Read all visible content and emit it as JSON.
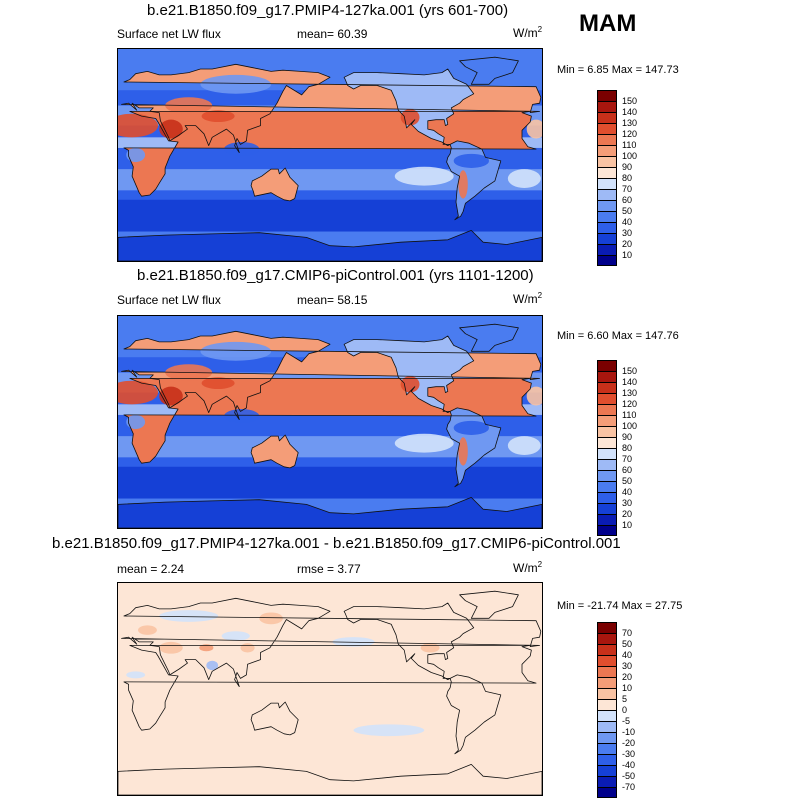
{
  "season": "MAM",
  "panels": [
    {
      "title": "b.e21.B1850.f09_g17.PMIP4-127ka.001 (yrs 601-700)",
      "left_label": "Surface net LW flux",
      "center_label": "mean=  60.39",
      "units": "W/m",
      "units_sup": "2",
      "minmax": "Min =   6.85 Max = 147.73",
      "colorbar_ticks": [
        "150",
        "140",
        "130",
        "120",
        "110",
        "100",
        "90",
        "80",
        "70",
        "60",
        "50",
        "40",
        "30",
        "20",
        "10"
      ]
    },
    {
      "title": "b.e21.B1850.f09_g17.CMIP6-piControl.001 (yrs 1101-1200)",
      "left_label": "Surface net LW flux",
      "center_label": "mean=  58.15",
      "units": "W/m",
      "units_sup": "2",
      "minmax": "Min =   6.60 Max = 147.76",
      "colorbar_ticks": [
        "150",
        "140",
        "130",
        "120",
        "110",
        "100",
        "90",
        "80",
        "70",
        "60",
        "50",
        "40",
        "30",
        "20",
        "10"
      ]
    },
    {
      "title": "b.e21.B1850.f09_g17.PMIP4-127ka.001 - b.e21.B1850.f09_g17.CMIP6-piControl.001",
      "left_label": "mean =   2.24",
      "center_label": "rmse =   3.77",
      "units": "W/m",
      "units_sup": "2",
      "minmax": "Min = -21.74 Max =  27.75",
      "colorbar_ticks": [
        "70",
        "50",
        "40",
        "30",
        "20",
        "10",
        "5",
        "0",
        "-5",
        "-10",
        "-20",
        "-30",
        "-40",
        "-50",
        "-70"
      ]
    }
  ],
  "chart_data": [
    {
      "type": "heatmap",
      "title": "b.e21.B1850.f09_g17.PMIP4-127ka.001 (yrs 601-700)",
      "variable": "Surface net LW flux",
      "units": "W/m2",
      "mean": 60.39,
      "min": 6.85,
      "max": 147.73,
      "contour_levels": [
        10,
        20,
        30,
        40,
        50,
        60,
        70,
        80,
        90,
        100,
        110,
        120,
        130,
        140,
        150
      ],
      "colors": [
        "#00008b",
        "#0a1cb4",
        "#1540d6",
        "#2e5fe9",
        "#4a7cf0",
        "#6f98f2",
        "#9ebaf6",
        "#d2e2fb",
        "#fde6d6",
        "#f9c3a3",
        "#f49d78",
        "#ec7752",
        "#e04e2e",
        "#c8301a",
        "#a8160e",
        "#7a0000"
      ]
    },
    {
      "type": "heatmap",
      "title": "b.e21.B1850.f09_g17.CMIP6-piControl.001 (yrs 1101-1200)",
      "variable": "Surface net LW flux",
      "units": "W/m2",
      "mean": 58.15,
      "min": 6.6,
      "max": 147.76,
      "contour_levels": [
        10,
        20,
        30,
        40,
        50,
        60,
        70,
        80,
        90,
        100,
        110,
        120,
        130,
        140,
        150
      ],
      "colors": [
        "#00008b",
        "#0a1cb4",
        "#1540d6",
        "#2e5fe9",
        "#4a7cf0",
        "#6f98f2",
        "#9ebaf6",
        "#d2e2fb",
        "#fde6d6",
        "#f9c3a3",
        "#f49d78",
        "#ec7752",
        "#e04e2e",
        "#c8301a",
        "#a8160e",
        "#7a0000"
      ]
    },
    {
      "type": "heatmap",
      "title": "b.e21.B1850.f09_g17.PMIP4-127ka.001 - b.e21.B1850.f09_g17.CMIP6-piControl.001",
      "units": "W/m2",
      "mean": 2.24,
      "rmse": 3.77,
      "min": -21.74,
      "max": 27.75,
      "contour_levels": [
        -70,
        -50,
        -40,
        -30,
        -20,
        -10,
        -5,
        0,
        5,
        10,
        20,
        30,
        40,
        50,
        70
      ],
      "colors": [
        "#00008b",
        "#0a1cb4",
        "#1540d6",
        "#2e5fe9",
        "#4a7cf0",
        "#6f98f2",
        "#9ebaf6",
        "#d2e2fb",
        "#fde6d6",
        "#f9c3a3",
        "#f49d78",
        "#ec7752",
        "#e04e2e",
        "#c8301a",
        "#a8160e",
        "#7a0000"
      ]
    }
  ]
}
